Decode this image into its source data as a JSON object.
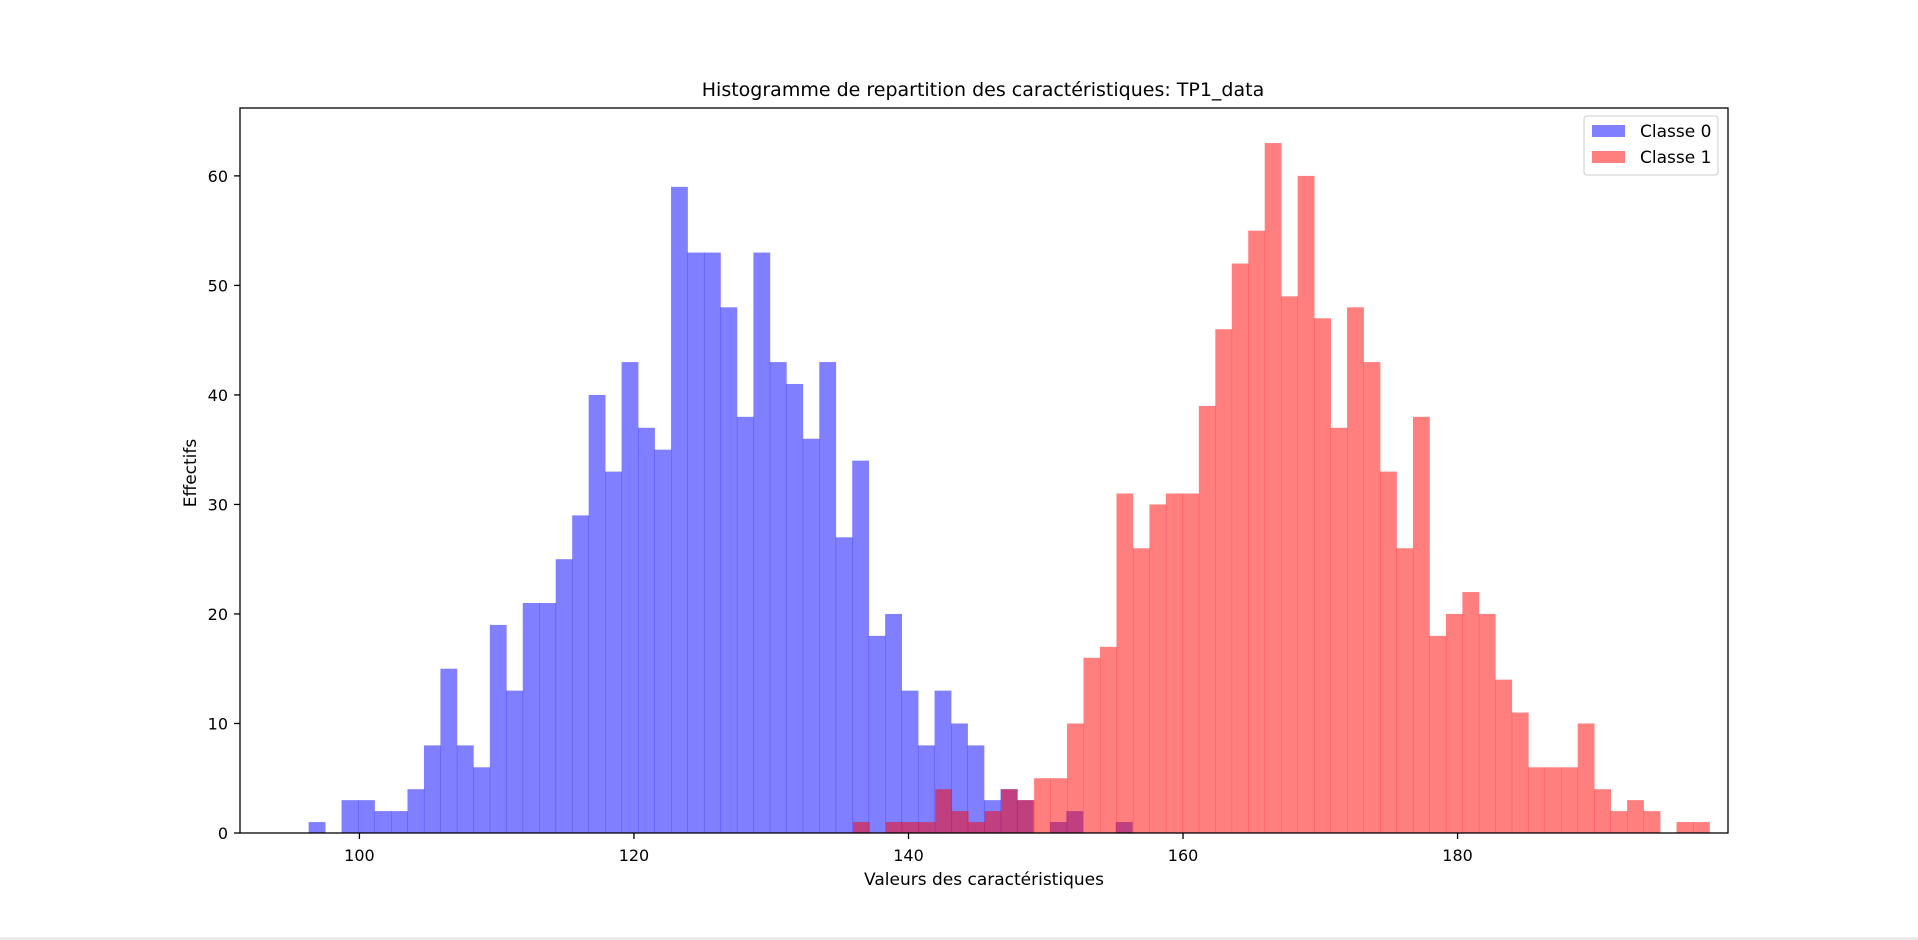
{
  "chart_data": {
    "type": "bar",
    "subtype": "overlaid-histogram",
    "title": "Histogramme de repartition des caractéristiques: TP1_data",
    "xlabel": "Valeurs des caractéristiques",
    "ylabel": "Effectifs",
    "xlim": [
      91.3,
      199.7
    ],
    "ylim": [
      0,
      66.2
    ],
    "xticks": [
      100,
      120,
      140,
      160,
      180
    ],
    "yticks": [
      0,
      10,
      20,
      30,
      40,
      50,
      60
    ],
    "grid": false,
    "legend_position": "top-right",
    "bar_alpha": 0.5,
    "series": [
      {
        "name": "Classe 0",
        "color": "#0000ff",
        "bin_start": 96.3,
        "bin_width": 1.2,
        "values": [
          1,
          0,
          3,
          3,
          2,
          2,
          4,
          8,
          15,
          8,
          6,
          19,
          13,
          21,
          21,
          25,
          29,
          40,
          33,
          43,
          37,
          35,
          59,
          53,
          53,
          48,
          38,
          53,
          43,
          41,
          36,
          43,
          27,
          34,
          18,
          20,
          13,
          8,
          13,
          10,
          8,
          3,
          4,
          3,
          0,
          1,
          2,
          0,
          0,
          1
        ]
      },
      {
        "name": "Classe 1",
        "color": "#ff0000",
        "bin_start": 135.95,
        "bin_width": 1.2,
        "values": [
          1,
          0,
          1,
          1,
          1,
          4,
          2,
          1,
          2,
          4,
          3,
          5,
          5,
          10,
          16,
          17,
          31,
          26,
          30,
          31,
          31,
          39,
          46,
          52,
          55,
          63,
          49,
          60,
          47,
          37,
          48,
          43,
          33,
          26,
          38,
          18,
          20,
          22,
          20,
          14,
          11,
          6,
          6,
          6,
          10,
          4,
          2,
          3,
          2,
          0,
          1,
          1
        ]
      }
    ]
  }
}
